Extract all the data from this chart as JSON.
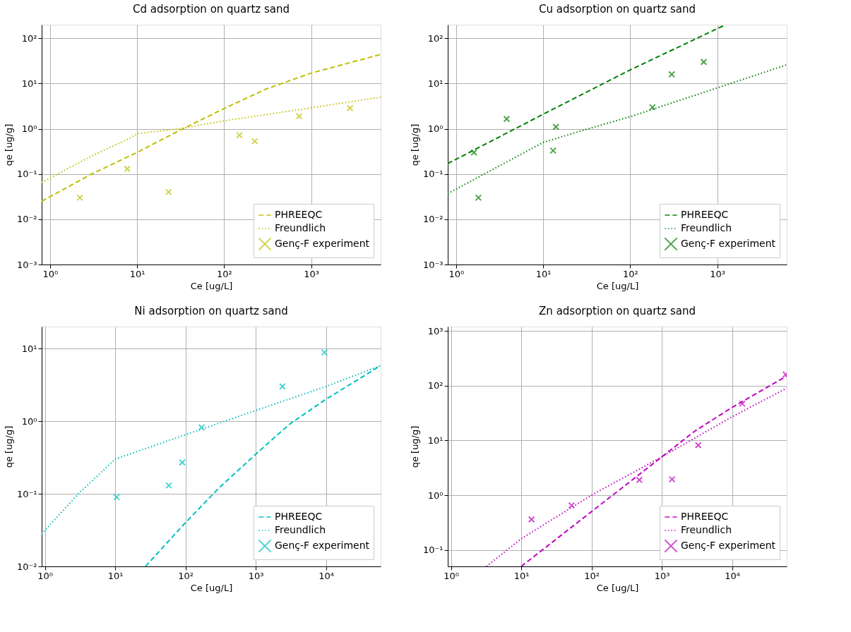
{
  "chart_data": [
    {
      "type": "line",
      "title": "Cd adsorption on quartz sand",
      "xlabel": "Ce [ug/L]",
      "ylabel": "qe [ug/g]",
      "log": "xy",
      "grid": true,
      "legend": "bottom right",
      "xlim": [
        0.8,
        6300
      ],
      "ylim": [
        0.001,
        200
      ],
      "xticks": [
        {
          "value": 1,
          "label": "10⁰"
        },
        {
          "value": 10,
          "label": "10¹"
        },
        {
          "value": 100,
          "label": "10²"
        },
        {
          "value": 1000,
          "label": "10³"
        }
      ],
      "yticks": [
        {
          "value": 0.001,
          "label": "10⁻³"
        },
        {
          "value": 0.01,
          "label": "10⁻²"
        },
        {
          "value": 0.1,
          "label": "10⁻¹"
        },
        {
          "value": 1,
          "label": "10⁰"
        },
        {
          "value": 10,
          "label": "10¹"
        },
        {
          "value": 100,
          "label": "10²"
        }
      ],
      "series": [
        {
          "name": "PHREEQC",
          "line_style": "dashed",
          "color": "#bfbf00",
          "x": [
            0.8,
            3,
            10,
            30,
            100,
            300,
            1000,
            3000,
            6300
          ],
          "values": [
            0.025,
            0.1,
            0.3,
            0.9,
            2.8,
            7.5,
            17,
            30,
            44
          ]
        },
        {
          "name": "Freundlich",
          "line_style": "dotted",
          "color": "#bfbf00",
          "x": [
            0.8,
            3,
            8,
            10,
            30,
            100,
            1000,
            6300
          ],
          "values": [
            0.065,
            0.25,
            0.6,
            0.78,
            1.0,
            1.5,
            2.9,
            5
          ]
        },
        {
          "name": "Genç-F experiment",
          "type": "scatter",
          "marker": "cross",
          "color": "#bfbf00",
          "x": [
            2.2,
            7.7,
            23,
            150,
            225,
            730,
            2800
          ],
          "values": [
            0.03,
            0.13,
            0.04,
            0.72,
            0.53,
            1.9,
            2.85
          ]
        }
      ]
    },
    {
      "type": "line",
      "title": "Cu adsorption on quartz sand",
      "xlabel": "Ce [ug/L]",
      "ylabel": "qe [ug/g]",
      "log": "xy",
      "grid": true,
      "legend": "bottom right",
      "xlim": [
        0.8,
        6300
      ],
      "ylim": [
        0.001,
        200
      ],
      "xticks": [
        {
          "value": 1,
          "label": "10⁰"
        },
        {
          "value": 10,
          "label": "10¹"
        },
        {
          "value": 100,
          "label": "10²"
        },
        {
          "value": 1000,
          "label": "10³"
        }
      ],
      "yticks": [
        {
          "value": 0.001,
          "label": "10⁻³"
        },
        {
          "value": 0.01,
          "label": "10⁻²"
        },
        {
          "value": 0.1,
          "label": "10⁻¹"
        },
        {
          "value": 1,
          "label": "10⁰"
        },
        {
          "value": 10,
          "label": "10¹"
        },
        {
          "value": 100,
          "label": "10²"
        }
      ],
      "series": [
        {
          "name": "PHREEQC",
          "line_style": "dashed",
          "color": "#008000",
          "x": [
            0.8,
            10,
            100,
            1250
          ],
          "values": [
            0.17,
            2.1,
            20,
            200
          ]
        },
        {
          "name": "Freundlich",
          "line_style": "dotted",
          "color": "#008000",
          "x": [
            0.8,
            10,
            30,
            100,
            1000,
            6300
          ],
          "values": [
            0.037,
            0.5,
            0.95,
            1.85,
            8,
            26
          ]
        },
        {
          "name": "Genç-F experiment",
          "type": "scatter",
          "marker": "cross",
          "color": "#008000",
          "x": [
            1.6,
            1.8,
            3.8,
            13,
            14,
            180,
            300,
            700
          ],
          "values": [
            0.3,
            0.03,
            1.65,
            0.33,
            1.1,
            3.0,
            16,
            30
          ]
        }
      ]
    },
    {
      "type": "line",
      "title": "Ni adsorption on quartz sand",
      "xlabel": "Ce [ug/L]",
      "ylabel": "qe [ug/g]",
      "log": "xy",
      "grid": true,
      "legend": "bottom right",
      "xlim": [
        0.9,
        60000
      ],
      "ylim": [
        0.01,
        20
      ],
      "xticks": [
        {
          "value": 1,
          "label": "10⁰"
        },
        {
          "value": 10,
          "label": "10¹"
        },
        {
          "value": 100,
          "label": "10²"
        },
        {
          "value": 1000,
          "label": "10³"
        },
        {
          "value": 10000,
          "label": "10⁴"
        }
      ],
      "yticks": [
        {
          "value": 0.01,
          "label": "10⁻²"
        },
        {
          "value": 0.1,
          "label": "10⁻¹"
        },
        {
          "value": 1,
          "label": "10⁰"
        },
        {
          "value": 10,
          "label": "10¹"
        }
      ],
      "series": [
        {
          "name": "PHREEQC",
          "line_style": "dashed",
          "color": "#00bfbf",
          "x": [
            27,
            100,
            300,
            1000,
            3000,
            10000,
            60000
          ],
          "values": [
            0.01,
            0.04,
            0.12,
            0.35,
            0.9,
            2,
            5.8
          ]
        },
        {
          "name": "Freundlich",
          "line_style": "dotted",
          "color": "#00bfbf",
          "x": [
            0.9,
            3,
            10,
            100,
            1000,
            10000,
            60000
          ],
          "values": [
            0.028,
            0.1,
            0.3,
            0.65,
            1.4,
            3,
            5.8
          ]
        },
        {
          "name": "Genç-F experiment",
          "type": "scatter",
          "marker": "cross",
          "color": "#00bfbf",
          "x": [
            10.5,
            58,
            90,
            170,
            2400,
            9500
          ],
          "values": [
            0.09,
            0.13,
            0.27,
            0.82,
            3.0,
            8.8
          ]
        }
      ]
    },
    {
      "type": "line",
      "title": "Zn adsorption on quartz sand",
      "xlabel": "Ce [ug/L]",
      "ylabel": "qe [ug/g]",
      "log": "xy",
      "grid": true,
      "legend": "bottom right",
      "xlim": [
        0.9,
        60000
      ],
      "ylim": [
        0.05,
        1200
      ],
      "xticks": [
        {
          "value": 1,
          "label": "10⁰"
        },
        {
          "value": 10,
          "label": "10¹"
        },
        {
          "value": 100,
          "label": "10²"
        },
        {
          "value": 1000,
          "label": "10³"
        },
        {
          "value": 10000,
          "label": "10⁴"
        }
      ],
      "yticks": [
        {
          "value": 0.1,
          "label": "10⁻¹"
        },
        {
          "value": 1,
          "label": "10⁰"
        },
        {
          "value": 10,
          "label": "10¹"
        },
        {
          "value": 100,
          "label": "10²"
        },
        {
          "value": 1000,
          "label": "10³"
        }
      ],
      "series": [
        {
          "name": "PHREEQC",
          "line_style": "dashed",
          "color": "#bf00bf",
          "x": [
            10,
            100,
            1000,
            3000,
            10000,
            60000
          ],
          "values": [
            0.05,
            0.5,
            5,
            15,
            40,
            150
          ]
        },
        {
          "name": "Freundlich",
          "line_style": "dotted",
          "color": "#bf00bf",
          "x": [
            3.2,
            10,
            100,
            1000,
            10000,
            60000
          ],
          "values": [
            0.05,
            0.16,
            1,
            5,
            27,
            90
          ]
        },
        {
          "name": "Genç-F experiment",
          "type": "scatter",
          "marker": "cross",
          "color": "#bf00bf",
          "x": [
            14,
            52,
            480,
            1400,
            3300,
            14000,
            58000
          ],
          "values": [
            0.36,
            0.65,
            1.9,
            1.95,
            8.2,
            47,
            160
          ]
        }
      ]
    }
  ]
}
